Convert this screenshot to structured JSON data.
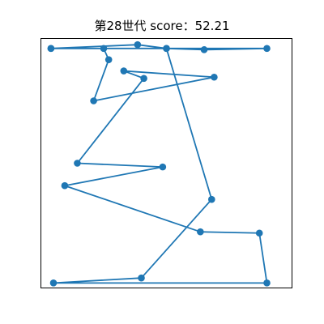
{
  "chart_data": {
    "type": "line",
    "title": "第28世代 score：52.21",
    "xlabel": "",
    "ylabel": "",
    "axis_ticks_visible": false,
    "grid": false,
    "marker": "circle",
    "color": "#1f77b4",
    "series": [
      {
        "points": [
          {
            "x": 0.04,
            "y": 0.04
          },
          {
            "x": 0.385,
            "y": 0.025
          },
          {
            "x": 0.5,
            "y": 0.04
          },
          {
            "x": 0.25,
            "y": 0.04
          },
          {
            "x": 0.27,
            "y": 0.085
          },
          {
            "x": 0.21,
            "y": 0.25
          },
          {
            "x": 0.69,
            "y": 0.155
          },
          {
            "x": 0.33,
            "y": 0.13
          },
          {
            "x": 0.41,
            "y": 0.16
          },
          {
            "x": 0.145,
            "y": 0.5
          },
          {
            "x": 0.485,
            "y": 0.515
          },
          {
            "x": 0.095,
            "y": 0.59
          },
          {
            "x": 0.635,
            "y": 0.775
          },
          {
            "x": 0.87,
            "y": 0.78
          },
          {
            "x": 0.9,
            "y": 0.98
          },
          {
            "x": 0.05,
            "y": 0.98
          },
          {
            "x": 0.4,
            "y": 0.96
          },
          {
            "x": 0.68,
            "y": 0.645
          },
          {
            "x": 0.5,
            "y": 0.04
          },
          {
            "x": 0.65,
            "y": 0.045
          },
          {
            "x": 0.9,
            "y": 0.04
          },
          {
            "x": 0.04,
            "y": 0.04
          }
        ]
      }
    ],
    "xlim": [
      0,
      1
    ],
    "ylim": [
      0,
      1
    ]
  }
}
